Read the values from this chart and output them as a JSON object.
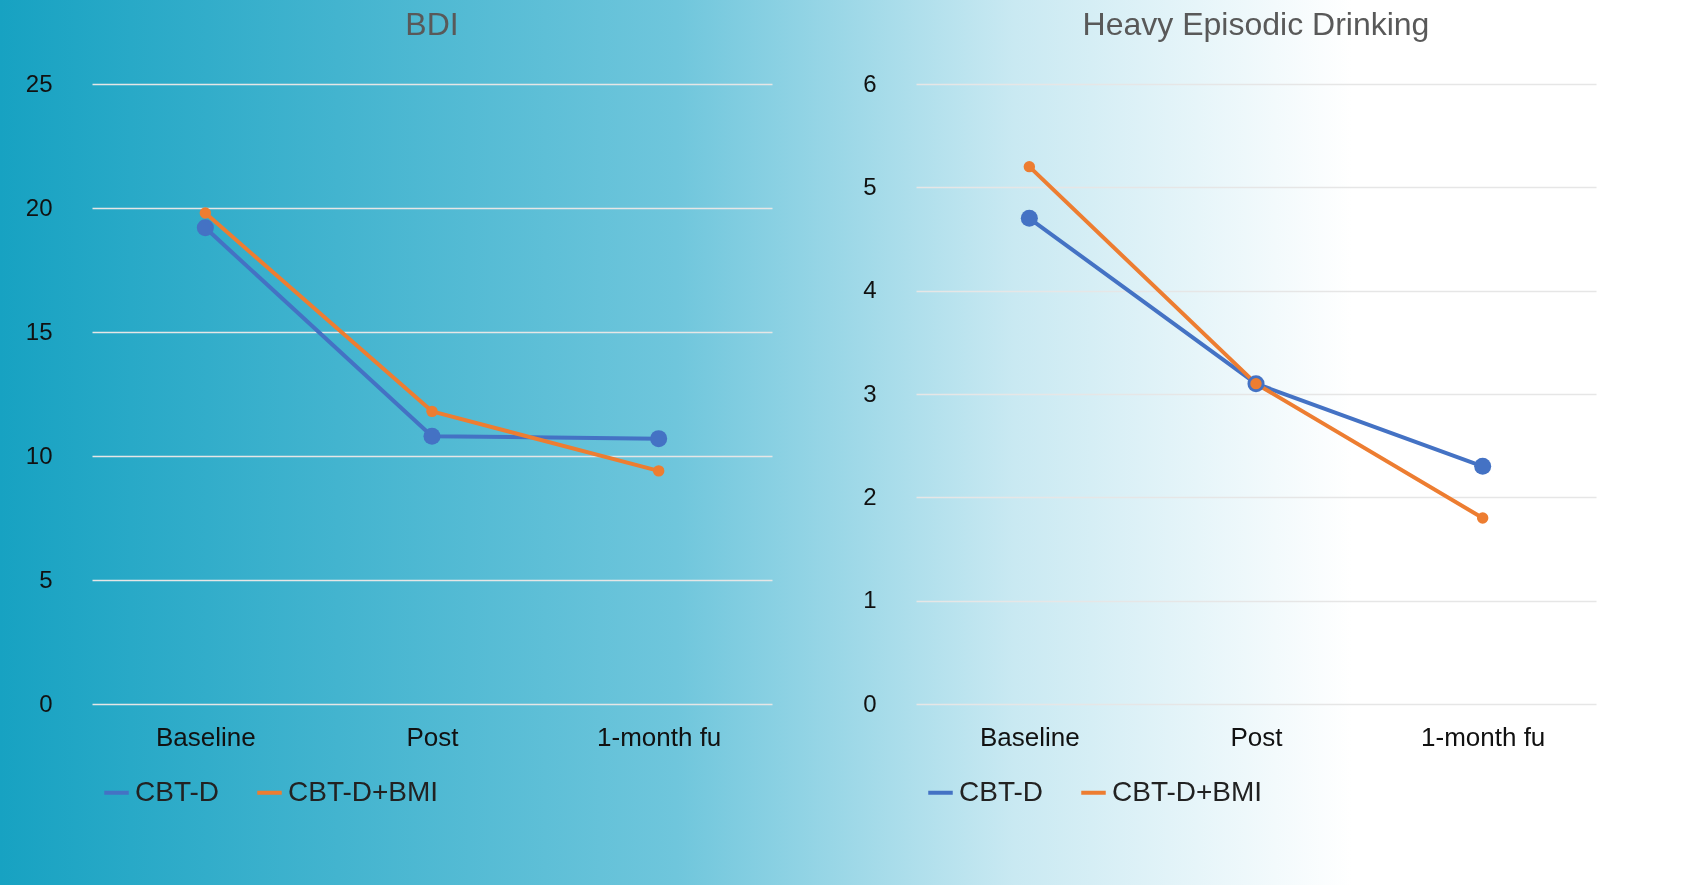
{
  "chart_data": [
    {
      "type": "line",
      "title": "BDI",
      "categories": [
        "Baseline",
        "Post",
        "1-month fu"
      ],
      "series": [
        {
          "name": "CBT-D",
          "color": "#4472c4",
          "values": [
            19.2,
            10.8,
            10.7
          ]
        },
        {
          "name": "CBT-D+BMI",
          "color": "#ed7d31",
          "values": [
            19.8,
            11.8,
            9.4
          ]
        }
      ],
      "ylim": [
        0,
        25
      ],
      "yticks": [
        0,
        5,
        10,
        15,
        20,
        25
      ],
      "grid": "y",
      "legend": "bottom",
      "marker": "circle",
      "line_style": "solid"
    },
    {
      "type": "line",
      "title": "Heavy Episodic Drinking",
      "categories": [
        "Baseline",
        "Post",
        "1-month fu"
      ],
      "series": [
        {
          "name": "CBT-D",
          "color": "#4472c4",
          "values": [
            4.7,
            3.1,
            2.3
          ]
        },
        {
          "name": "CBT-D+BMI",
          "color": "#ed7d31",
          "values": [
            5.2,
            3.1,
            1.8
          ]
        }
      ],
      "ylim": [
        0,
        6
      ],
      "yticks": [
        0,
        1,
        2,
        3,
        4,
        5,
        6
      ],
      "grid": "y",
      "legend": "bottom",
      "marker": "circle",
      "line_style": "solid"
    }
  ]
}
